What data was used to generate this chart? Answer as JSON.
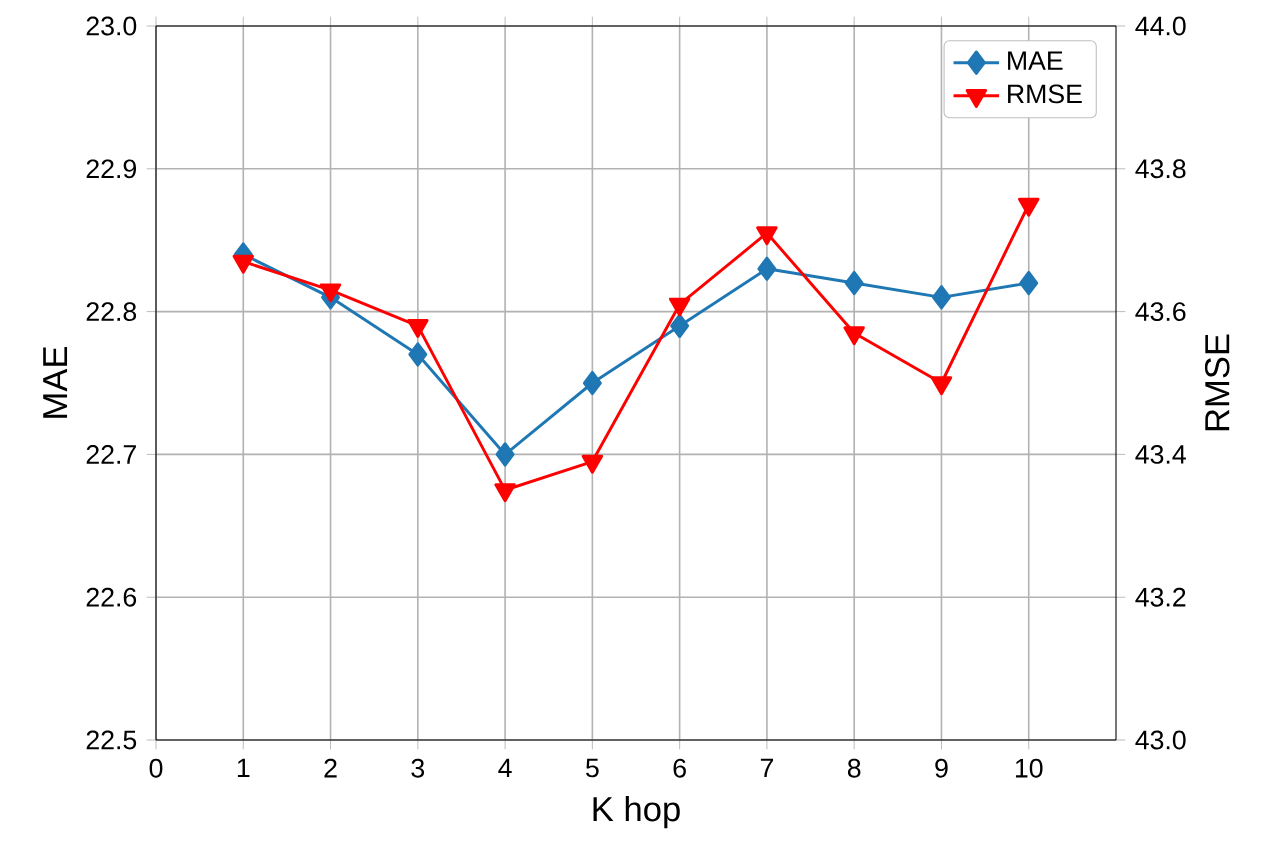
{
  "chart_data": {
    "type": "line",
    "xlabel": "K hop",
    "ylabel": "MAE",
    "y2label": "RMSE",
    "x": [
      1,
      2,
      3,
      4,
      5,
      6,
      7,
      8,
      9,
      10
    ],
    "series": [
      {
        "name": "MAE",
        "color": "#1f77b4",
        "marker": "diamond",
        "values": [
          22.84,
          22.81,
          22.77,
          22.7,
          22.75,
          22.79,
          22.83,
          22.82,
          22.81,
          22.82
        ]
      },
      {
        "name": "RMSE",
        "color": "#ff0000",
        "marker": "triangle",
        "axis": "y2",
        "values": [
          43.67,
          43.63,
          43.58,
          43.35,
          43.39,
          43.61,
          43.71,
          43.57,
          43.5,
          43.75
        ]
      }
    ],
    "xlim": [
      0,
      11
    ],
    "xticks": [
      0,
      1,
      2,
      3,
      4,
      5,
      6,
      7,
      8,
      9,
      10
    ],
    "ylim": [
      22.5,
      23.0
    ],
    "yticks": [
      22.5,
      22.6,
      22.7,
      22.8,
      22.9,
      {
        "value": 23,
        "label": "23.0"
      }
    ],
    "y2lim": [
      43.0,
      44.0
    ],
    "y2ticks": [
      {
        "value": 43,
        "label": "43.0"
      },
      43.2,
      43.4,
      43.6,
      43.8,
      {
        "value": 44,
        "label": "44.0"
      }
    ],
    "grid": true,
    "legend": "top right",
    "line_style": "solid"
  }
}
